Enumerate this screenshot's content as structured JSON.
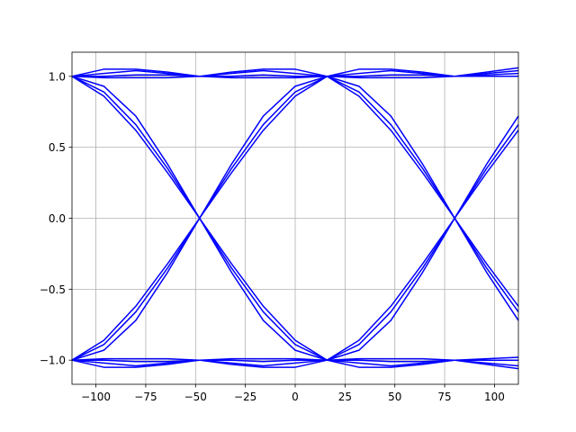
{
  "chart_data": {
    "type": "line",
    "title": "",
    "xlabel": "",
    "ylabel": "",
    "xlim": [
      -112,
      112
    ],
    "ylim": [
      -1.17,
      1.17
    ],
    "grid": true,
    "legend": "none",
    "color": "#0000ff",
    "xticks": [
      -100,
      -75,
      -50,
      -25,
      0,
      25,
      50,
      75,
      100
    ],
    "xtick_labels": [
      "−100",
      "−75",
      "−50",
      "−25",
      "0",
      "25",
      "50",
      "75",
      "100"
    ],
    "yticks": [
      1.0,
      0.5,
      0.0,
      -0.5,
      -1.0
    ],
    "ytick_labels": [
      "1.0",
      "0.5",
      "0.0",
      "−0.5",
      "−1.0"
    ],
    "x": [
      -112,
      -96,
      -80,
      -64,
      -48,
      -32,
      -16,
      0,
      16,
      32,
      48,
      64,
      80,
      96,
      112
    ],
    "series": [
      {
        "values": [
          1.0,
          0.86,
          0.62,
          0.32,
          0.0,
          -0.32,
          -0.62,
          -0.86,
          -1.0,
          -0.86,
          -0.62,
          -0.32,
          0.0,
          0.32,
          0.62
        ]
      },
      {
        "values": [
          1.0,
          0.93,
          0.72,
          0.38,
          0.0,
          -0.38,
          -0.72,
          -0.93,
          -1.0,
          -0.93,
          -0.72,
          -0.38,
          0.0,
          0.38,
          0.72
        ]
      },
      {
        "values": [
          1.0,
          0.89,
          0.66,
          0.35,
          0.0,
          -0.35,
          -0.66,
          -0.89,
          -1.0,
          -0.89,
          -0.66,
          -0.35,
          0.0,
          0.35,
          0.66
        ]
      },
      {
        "values": [
          -1.0,
          -0.86,
          -0.62,
          -0.32,
          0.0,
          0.32,
          0.62,
          0.86,
          1.0,
          0.86,
          0.62,
          0.32,
          0.0,
          -0.32,
          -0.62
        ]
      },
      {
        "values": [
          -1.0,
          -0.93,
          -0.72,
          -0.38,
          0.0,
          0.38,
          0.72,
          0.93,
          1.0,
          0.93,
          0.72,
          0.38,
          0.0,
          -0.38,
          -0.72
        ]
      },
      {
        "values": [
          -1.0,
          -0.89,
          -0.66,
          -0.35,
          0.0,
          0.35,
          0.66,
          0.89,
          1.0,
          0.89,
          0.66,
          0.35,
          0.0,
          -0.35,
          -0.66
        ]
      },
      {
        "values": [
          1.0,
          1.05,
          1.05,
          1.03,
          1.0,
          1.03,
          1.05,
          1.05,
          1.0,
          1.05,
          1.05,
          1.03,
          1.0,
          1.03,
          1.06
        ]
      },
      {
        "values": [
          1.0,
          1.02,
          1.04,
          1.02,
          1.0,
          1.02,
          1.04,
          1.02,
          1.0,
          1.02,
          1.04,
          1.02,
          1.0,
          1.02,
          1.04
        ]
      },
      {
        "values": [
          1.0,
          0.99,
          0.99,
          0.99,
          1.0,
          0.99,
          0.99,
          0.99,
          1.0,
          0.99,
          0.99,
          0.99,
          1.0,
          1.01,
          1.02
        ]
      },
      {
        "values": [
          1.0,
          1.0,
          1.01,
          1.01,
          1.0,
          1.0,
          1.01,
          1.0,
          1.0,
          1.0,
          1.01,
          1.01,
          1.0,
          1.0,
          1.0
        ]
      },
      {
        "values": [
          -1.0,
          -1.05,
          -1.05,
          -1.03,
          -1.0,
          -1.03,
          -1.05,
          -1.05,
          -1.0,
          -1.05,
          -1.05,
          -1.03,
          -1.0,
          -1.03,
          -1.06
        ]
      },
      {
        "values": [
          -1.0,
          -1.02,
          -1.04,
          -1.02,
          -1.0,
          -1.02,
          -1.04,
          -1.02,
          -1.0,
          -1.02,
          -1.04,
          -1.02,
          -1.0,
          -1.02,
          -1.04
        ]
      },
      {
        "values": [
          -1.0,
          -0.99,
          -0.99,
          -0.99,
          -1.0,
          -0.99,
          -0.99,
          -0.99,
          -1.0,
          -0.99,
          -0.99,
          -0.99,
          -1.0,
          -0.99,
          -0.98
        ]
      },
      {
        "values": [
          -1.0,
          -1.0,
          -1.01,
          -1.01,
          -1.0,
          -1.0,
          -1.01,
          -1.0,
          -1.0,
          -1.0,
          -1.01,
          -1.01,
          -1.0,
          -1.0,
          -1.0
        ]
      }
    ]
  }
}
